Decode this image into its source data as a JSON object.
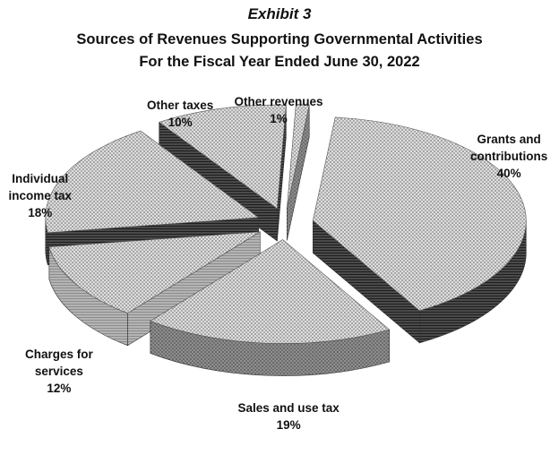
{
  "exhibit_label": "Exhibit 3",
  "title_line1": "Sources of Revenues Supporting Governmental Activities",
  "title_line2": "For the Fiscal Year Ended June 30, 2022",
  "chart_data": {
    "type": "pie",
    "style": "3d-exploded",
    "slices": [
      {
        "label": "Grants and contributions",
        "label_lines": [
          "Grants and",
          "contributions"
        ],
        "value": 40,
        "value_label": "40%"
      },
      {
        "label": "Sales and use tax",
        "label_lines": [
          "Sales and use tax"
        ],
        "value": 19,
        "value_label": "19%"
      },
      {
        "label": "Charges for services",
        "label_lines": [
          "Charges for",
          "services"
        ],
        "value": 12,
        "value_label": "12%"
      },
      {
        "label": "Individual income tax",
        "label_lines": [
          "Individual",
          "income tax"
        ],
        "value": 18,
        "value_label": "18%"
      },
      {
        "label": "Other taxes",
        "label_lines": [
          "Other taxes"
        ],
        "value": 10,
        "value_label": "10%"
      },
      {
        "label": "Other revenues",
        "label_lines": [
          "Other revenues"
        ],
        "value": 1,
        "value_label": "1%"
      }
    ]
  }
}
